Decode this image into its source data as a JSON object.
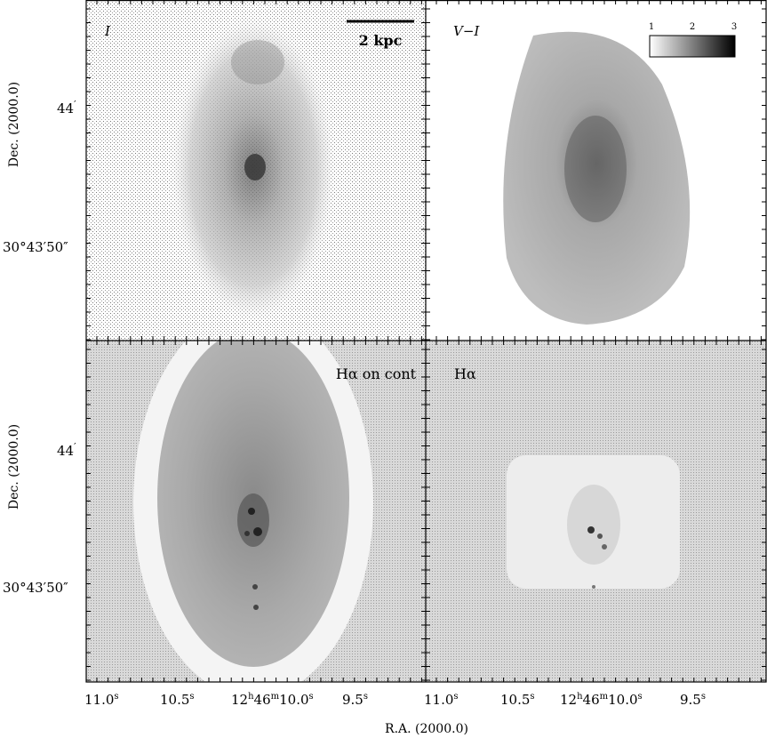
{
  "panels": [
    {
      "id": "tl",
      "label": "I",
      "label_style": "italic"
    },
    {
      "id": "tr",
      "label": "V−I",
      "label_style": "italic"
    },
    {
      "id": "bl",
      "label": "Hα on cont",
      "label_style": "normal"
    },
    {
      "id": "br",
      "label": "Hα",
      "label_style": "normal"
    }
  ],
  "scalebar": {
    "label": "2 kpc"
  },
  "colorbar": {
    "ticks": [
      "1",
      "2",
      "3"
    ]
  },
  "axes": {
    "ylabel": "Dec.  (2000.0)",
    "xlabel": "R.A.  (2000.0)",
    "dec_ticks": [
      {
        "text_main": "44",
        "prime": "′"
      },
      {
        "text_main": "30°43′50″",
        "prime": ""
      }
    ],
    "ra_ticks": [
      {
        "main": "11.0",
        "sup": "s"
      },
      {
        "main": "10.5",
        "sup": "s"
      },
      {
        "main": "12",
        "sup": "h",
        "main2": "46",
        "sup2": "m",
        "main3": "10.0",
        "sup3": "s"
      },
      {
        "main": "9.5",
        "sup": "s"
      }
    ]
  }
}
